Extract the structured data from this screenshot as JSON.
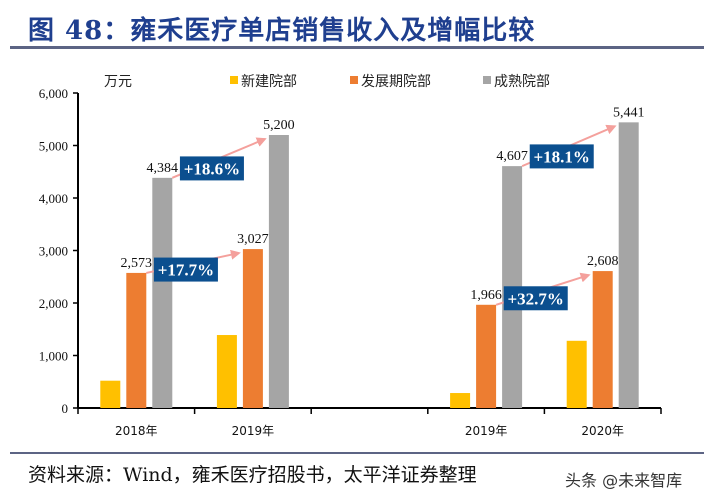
{
  "title": "图 48：雍禾医疗单店销售收入及增幅比较",
  "source": "资料来源：Wind，雍禾医疗招股书，太平洋证券整理",
  "watermark": "头条 @未来智库",
  "chart_data": {
    "type": "bar",
    "title": "",
    "ylabel": "万元",
    "xlabel": "",
    "ylim": [
      0,
      6000
    ],
    "yticks": [
      0,
      1000,
      2000,
      3000,
      4000,
      5000,
      6000
    ],
    "ytick_labels": [
      "0",
      "1,000",
      "2,000",
      "3,000",
      "4,000",
      "5,000",
      "6,000"
    ],
    "grid": false,
    "legend_position": "top",
    "categories": [
      "2018年",
      "2019年",
      "",
      "2019年",
      "2020年"
    ],
    "series": [
      {
        "name": "新建院部",
        "color": "#ffc000",
        "values": [
          520,
          1390,
          null,
          285,
          1280
        ],
        "labels": [
          null,
          null,
          null,
          null,
          null
        ]
      },
      {
        "name": "发展期院部",
        "color": "#ed7d31",
        "values": [
          2573,
          3027,
          null,
          1966,
          2608
        ],
        "labels": [
          "2,573",
          "3,027",
          null,
          "1,966",
          "2,608"
        ]
      },
      {
        "name": "成熟院部",
        "color": "#a5a5a5",
        "values": [
          4384,
          5200,
          null,
          4607,
          5441
        ],
        "labels": [
          "4,384",
          "5,200",
          null,
          "4,607",
          "5,441"
        ]
      }
    ],
    "annotations": [
      {
        "text": "+18.6%",
        "series": 2,
        "from": 0,
        "to": 1
      },
      {
        "text": "+17.7%",
        "series": 1,
        "from": 0,
        "to": 1
      },
      {
        "text": "+18.1%",
        "series": 2,
        "from": 3,
        "to": 4
      },
      {
        "text": "+32.7%",
        "series": 1,
        "from": 3,
        "to": 4
      }
    ],
    "annotation_box_color": "#0b4f8f",
    "arrow_color": "#f4a09c"
  }
}
